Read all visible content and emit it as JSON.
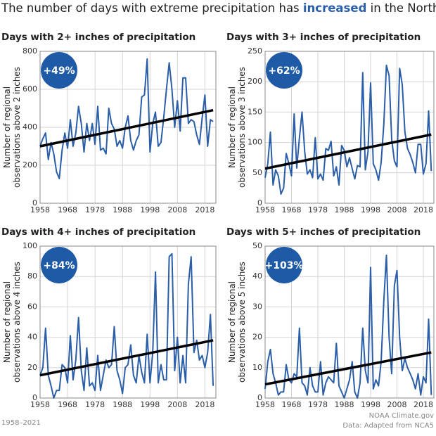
{
  "header": {
    "title_start": "The number of days with extreme precipitation has ",
    "title_highlight": "increased",
    "title_end": " in the Northeast"
  },
  "footer": {
    "period": "1958–2021",
    "source": "NOAA Climate.gov",
    "data": "Data: Adapted from NCA5"
  },
  "chart_data": [
    {
      "type": "line",
      "title": "Days with 2+ inches of precipitation",
      "annotation": "+49%",
      "ylabel": [
        "Number of regional",
        "observations above 2 inches"
      ],
      "x": [
        1958,
        1959,
        1960,
        1961,
        1962,
        1963,
        1964,
        1965,
        1966,
        1967,
        1968,
        1969,
        1970,
        1971,
        1972,
        1973,
        1974,
        1975,
        1976,
        1977,
        1978,
        1979,
        1980,
        1981,
        1982,
        1983,
        1984,
        1985,
        1986,
        1987,
        1988,
        1989,
        1990,
        1991,
        1992,
        1993,
        1994,
        1995,
        1996,
        1997,
        1998,
        1999,
        2000,
        2001,
        2002,
        2003,
        2004,
        2005,
        2006,
        2007,
        2008,
        2009,
        2010,
        2011,
        2012,
        2013,
        2014,
        2015,
        2016,
        2017,
        2018,
        2019,
        2020,
        2021
      ],
      "values": [
        300,
        340,
        370,
        230,
        320,
        260,
        165,
        130,
        280,
        370,
        290,
        440,
        300,
        370,
        510,
        420,
        270,
        420,
        330,
        420,
        310,
        510,
        280,
        290,
        260,
        500,
        420,
        390,
        300,
        330,
        290,
        400,
        460,
        330,
        280,
        330,
        360,
        560,
        570,
        760,
        270,
        420,
        480,
        300,
        320,
        450,
        600,
        740,
        600,
        400,
        540,
        380,
        660,
        660,
        420,
        440,
        430,
        360,
        310,
        450,
        570,
        300,
        440,
        430
      ],
      "color": "#2a5ea8",
      "trend": {
        "x": [
          1958,
          2021
        ],
        "values": [
          300,
          490
        ],
        "color": "#000000"
      },
      "xlim": [
        1958,
        2022
      ],
      "xticks": [
        1958,
        1968,
        1978,
        1988,
        1998,
        2008,
        2018
      ],
      "ylim": [
        0,
        800
      ],
      "yticks": [
        0,
        200,
        400,
        600,
        800
      ],
      "grid": true,
      "badge_color": "#1f5aa6"
    },
    {
      "type": "line",
      "title": "Days with 3+ inches of precipitation",
      "annotation": "+62%",
      "ylabel": [
        "Number of regional",
        "observations above 3 inches"
      ],
      "x": [
        1958,
        1959,
        1960,
        1961,
        1962,
        1963,
        1964,
        1965,
        1966,
        1967,
        1968,
        1969,
        1970,
        1971,
        1972,
        1973,
        1974,
        1975,
        1976,
        1977,
        1978,
        1979,
        1980,
        1981,
        1982,
        1983,
        1984,
        1985,
        1986,
        1987,
        1988,
        1989,
        1990,
        1991,
        1992,
        1993,
        1994,
        1995,
        1996,
        1997,
        1998,
        1999,
        2000,
        2001,
        2002,
        2003,
        2004,
        2005,
        2006,
        2007,
        2008,
        2009,
        2010,
        2011,
        2012,
        2013,
        2014,
        2015,
        2016,
        2017,
        2018,
        2019,
        2020,
        2021
      ],
      "values": [
        42,
        65,
        117,
        30,
        55,
        45,
        15,
        25,
        82,
        65,
        45,
        147,
        58,
        108,
        150,
        85,
        48,
        55,
        42,
        108,
        40,
        48,
        38,
        90,
        87,
        102,
        45,
        60,
        30,
        95,
        87,
        60,
        75,
        57,
        40,
        62,
        60,
        215,
        55,
        85,
        198,
        65,
        55,
        38,
        67,
        130,
        227,
        210,
        105,
        70,
        60,
        222,
        195,
        117,
        90,
        80,
        67,
        50,
        97,
        97,
        48,
        65,
        152,
        53
      ],
      "color": "#2a5ea8",
      "trend": {
        "x": [
          1958,
          2021
        ],
        "values": [
          57,
          113
        ],
        "color": "#000000"
      },
      "xlim": [
        1958,
        2022
      ],
      "xticks": [
        1958,
        1968,
        1978,
        1988,
        1998,
        2008,
        2018
      ],
      "ylim": [
        0,
        250
      ],
      "yticks": [
        0,
        50,
        100,
        150,
        200,
        250
      ],
      "grid": true,
      "badge_color": "#1f5aa6"
    },
    {
      "type": "line",
      "title": "Days with 4+ inches of precipitation",
      "annotation": "+84%",
      "ylabel": [
        "Number of regional",
        "observations above 4 inches"
      ],
      "x": [
        1958,
        1959,
        1960,
        1961,
        1962,
        1963,
        1964,
        1965,
        1966,
        1967,
        1968,
        1969,
        1970,
        1971,
        1972,
        1973,
        1974,
        1975,
        1976,
        1977,
        1978,
        1979,
        1980,
        1981,
        1982,
        1983,
        1984,
        1985,
        1986,
        1987,
        1988,
        1989,
        1990,
        1991,
        1992,
        1993,
        1994,
        1995,
        1996,
        1997,
        1998,
        1999,
        2000,
        2001,
        2002,
        2003,
        2004,
        2005,
        2006,
        2007,
        2008,
        2009,
        2010,
        2011,
        2012,
        2013,
        2014,
        2015,
        2016,
        2017,
        2018,
        2019,
        2020,
        2021
      ],
      "values": [
        15,
        20,
        46,
        15,
        8,
        0,
        5,
        5,
        22,
        20,
        10,
        41,
        12,
        25,
        53,
        18,
        5,
        33,
        8,
        10,
        5,
        28,
        5,
        15,
        25,
        20,
        22,
        47,
        18,
        12,
        3,
        20,
        22,
        35,
        15,
        10,
        28,
        17,
        10,
        42,
        10,
        30,
        83,
        10,
        22,
        12,
        12,
        93,
        95,
        18,
        40,
        10,
        28,
        10,
        75,
        93,
        30,
        38,
        25,
        28,
        20,
        30,
        55,
        8
      ],
      "color": "#2a5ea8",
      "trend": {
        "x": [
          1958,
          2021
        ],
        "values": [
          15,
          38
        ],
        "color": "#000000"
      },
      "xlim": [
        1958,
        2022
      ],
      "xticks": [
        1958,
        1968,
        1978,
        1988,
        1998,
        2008,
        2018
      ],
      "ylim": [
        0,
        100
      ],
      "yticks": [
        0,
        20,
        40,
        60,
        80,
        100
      ],
      "grid": true,
      "badge_color": "#1f5aa6"
    },
    {
      "type": "line",
      "title": "Days with 5+ inches of precipitation",
      "annotation": "+103%",
      "ylabel": [
        "Number of regional",
        "observations above 5 inches"
      ],
      "x": [
        1958,
        1959,
        1960,
        1961,
        1962,
        1963,
        1964,
        1965,
        1966,
        1967,
        1968,
        1969,
        1970,
        1971,
        1972,
        1973,
        1974,
        1975,
        1976,
        1977,
        1978,
        1979,
        1980,
        1981,
        1982,
        1983,
        1984,
        1985,
        1986,
        1987,
        1988,
        1989,
        1990,
        1991,
        1992,
        1993,
        1994,
        1995,
        1996,
        1997,
        1998,
        1999,
        2000,
        2001,
        2002,
        2003,
        2004,
        2005,
        2006,
        2007,
        2008,
        2009,
        2010,
        2011,
        2012,
        2013,
        2014,
        2015,
        2016,
        2017,
        2018,
        2019,
        2020,
        2021
      ],
      "values": [
        3,
        12,
        16,
        8,
        5,
        1,
        2,
        2,
        11,
        6,
        5,
        8,
        7,
        23,
        5,
        4,
        1,
        10,
        4,
        2,
        2,
        12,
        1,
        5,
        7,
        6,
        5,
        18,
        4,
        2,
        0,
        3,
        6,
        12,
        2,
        0,
        5,
        23,
        9,
        5,
        43,
        3,
        6,
        4,
        12,
        32,
        47,
        20,
        8,
        37,
        42,
        20,
        9,
        13,
        10,
        8,
        6,
        3,
        8,
        1,
        7,
        5,
        26,
        1
      ],
      "color": "#2a5ea8",
      "trend": {
        "x": [
          1958,
          2021
        ],
        "values": [
          4.5,
          15
        ],
        "color": "#000000"
      },
      "xlim": [
        1958,
        2022
      ],
      "xticks": [
        1958,
        1968,
        1978,
        1988,
        1998,
        2008,
        2018
      ],
      "ylim": [
        0,
        50
      ],
      "yticks": [
        0,
        10,
        20,
        30,
        40,
        50
      ],
      "grid": true,
      "badge_color": "#1f5aa6"
    }
  ]
}
